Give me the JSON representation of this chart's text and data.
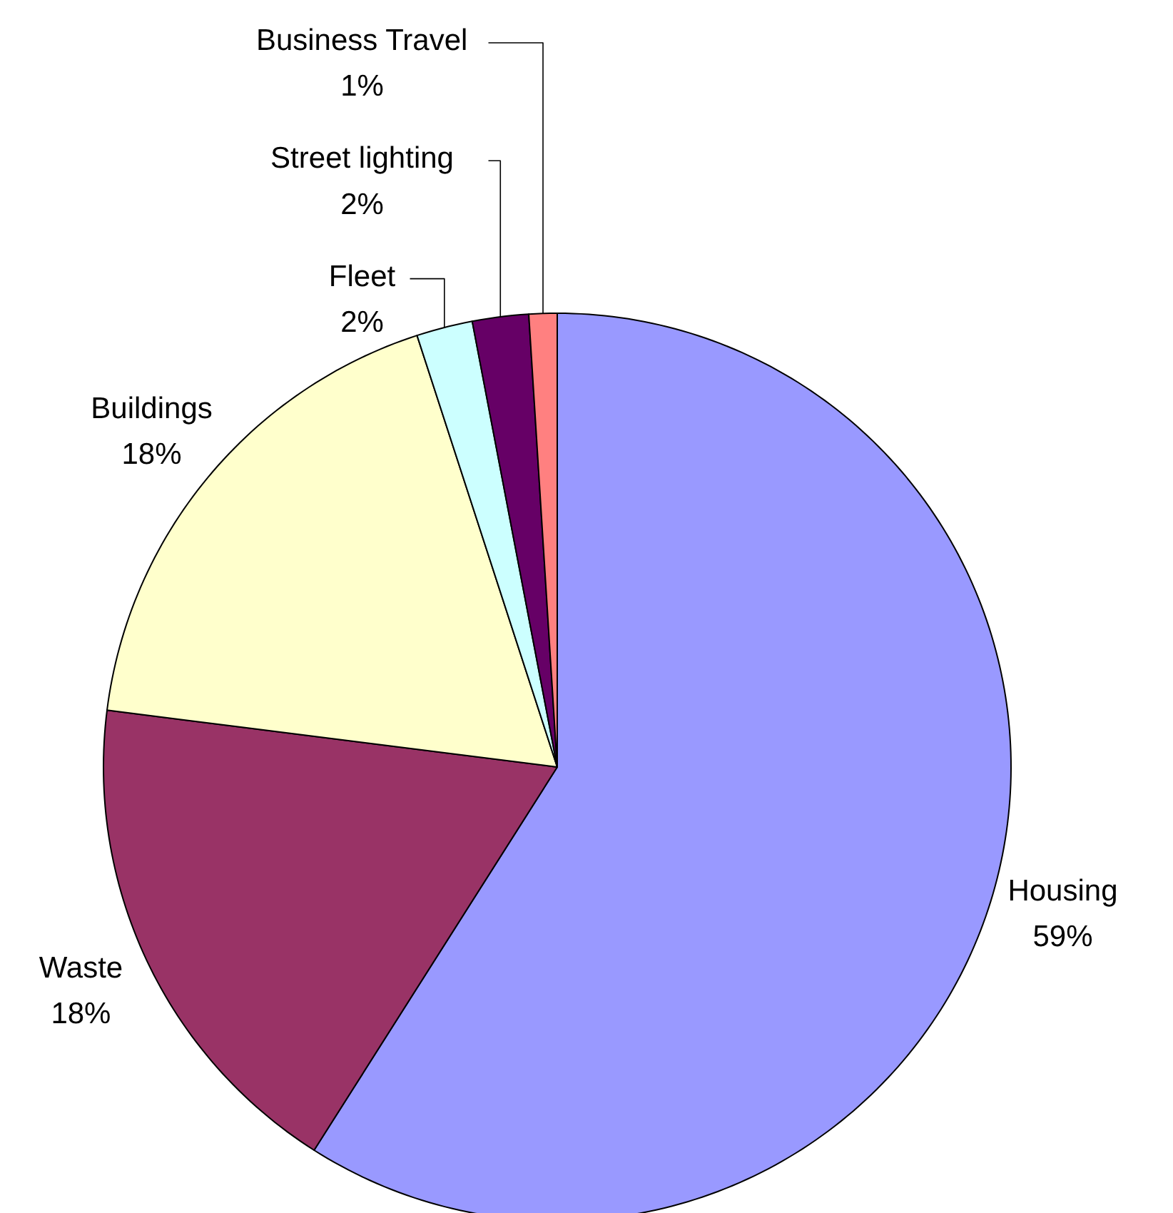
{
  "chart_data": {
    "type": "pie",
    "categories": [
      "Housing",
      "Waste",
      "Buildings",
      "Fleet",
      "Street lighting",
      "Business Travel"
    ],
    "values": [
      59,
      18,
      18,
      2,
      2,
      1
    ],
    "value_labels": [
      "59%",
      "18%",
      "18%",
      "2%",
      "2%",
      "1%"
    ],
    "colors": [
      "#9999ff",
      "#993366",
      "#ffffcc",
      "#ccffff",
      "#660066",
      "#ff8080"
    ],
    "legend": false
  }
}
